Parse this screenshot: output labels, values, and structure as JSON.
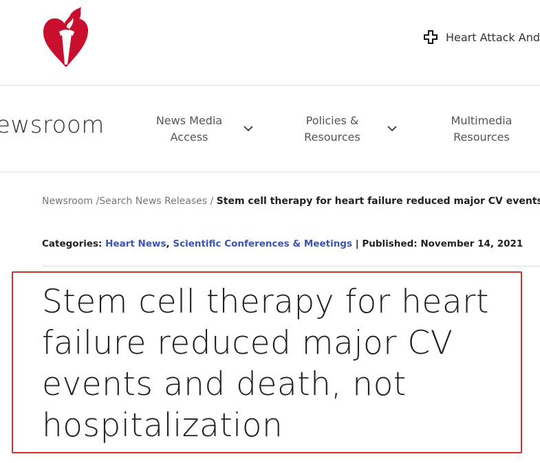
{
  "header": {
    "utility_link": "Heart Attack And",
    "utility_icon": "plus-outline-icon"
  },
  "nav": {
    "brand": "ewsroom",
    "items": [
      {
        "line1": "News Media",
        "line2": "Access",
        "has_dropdown": true
      },
      {
        "line1": "Policies &",
        "line2": "Resources",
        "has_dropdown": true
      },
      {
        "line1": "Multimedia",
        "line2": "Resources",
        "has_dropdown": false
      }
    ]
  },
  "breadcrumb": {
    "items": [
      "Newsroom",
      "Search News Releases"
    ],
    "separator": "/",
    "current": "Stem cell therapy for heart failure reduced major CV events and"
  },
  "meta": {
    "categories_label": "Categories:",
    "categories": [
      "Heart News",
      "Scientific Conferences & Meetings"
    ],
    "published_label": "| Published:",
    "published": "November 14, 2021"
  },
  "article": {
    "title": "Stem cell therapy for heart failure reduced major CV events and death, not hospitalization"
  },
  "colors": {
    "brand_red": "#c8102e",
    "link": "#3a55b4",
    "highlight": "#d32f2f"
  }
}
